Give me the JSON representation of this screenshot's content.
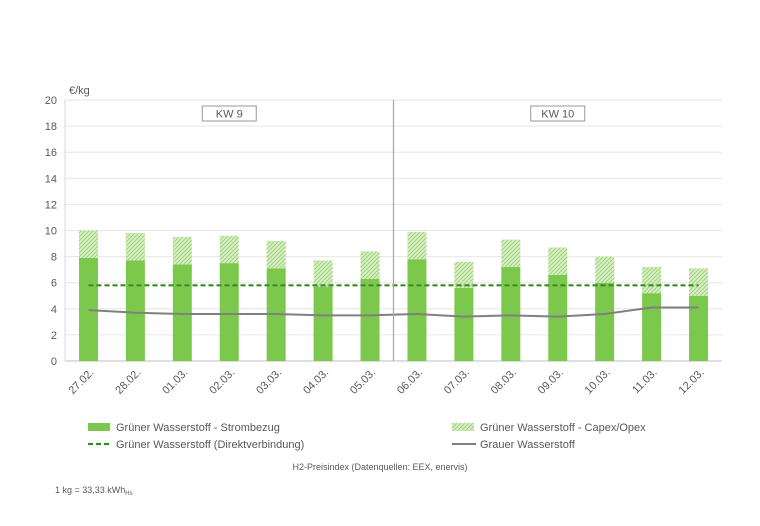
{
  "chart_data": {
    "type": "bar",
    "stacked": true,
    "ylabel": "€/kg",
    "ylim": [
      0,
      20
    ],
    "yticks": [
      0,
      2,
      4,
      6,
      8,
      10,
      12,
      14,
      16,
      18,
      20
    ],
    "grid": true,
    "categories": [
      "27.02.",
      "28.02.",
      "01.03.",
      "02.03.",
      "03.03.",
      "04.03.",
      "05.03.",
      "06.03.",
      "07.03.",
      "08.03.",
      "09.03.",
      "10.03.",
      "11.03.",
      "12.03."
    ],
    "groups": [
      {
        "label": "KW 9",
        "from": "27.02.",
        "to": "05.03."
      },
      {
        "label": "KW 10",
        "from": "06.03.",
        "to": "12.03."
      }
    ],
    "series": [
      {
        "name": "Grüner Wasserstoff - Strombezug",
        "kind": "bar",
        "color": "#7cc84d",
        "values": [
          7.9,
          7.7,
          7.4,
          7.5,
          7.1,
          5.7,
          6.3,
          7.8,
          5.6,
          7.2,
          6.6,
          6.0,
          5.2,
          5.0
        ]
      },
      {
        "name": "Grüner Wasserstoff - Capex/Opex",
        "kind": "bar",
        "color": "#c2e3a8",
        "pattern": "hatched",
        "values": [
          2.1,
          2.1,
          2.1,
          2.1,
          2.1,
          2.0,
          2.1,
          2.1,
          2.0,
          2.1,
          2.1,
          2.0,
          2.0,
          2.1
        ]
      },
      {
        "name": "Grüner Wasserstoff (Direktverbindung)",
        "kind": "line",
        "style": "dashed",
        "color": "#3a8a24",
        "values": [
          5.8,
          5.8,
          5.8,
          5.8,
          5.8,
          5.8,
          5.8,
          5.8,
          5.8,
          5.8,
          5.8,
          5.8,
          5.8,
          5.8
        ]
      },
      {
        "name": "Grauer Wasserstoff",
        "kind": "line",
        "style": "solid",
        "color": "#808080",
        "values": [
          3.9,
          3.7,
          3.6,
          3.6,
          3.6,
          3.5,
          3.5,
          3.6,
          3.4,
          3.5,
          3.4,
          3.6,
          4.1,
          4.1
        ]
      }
    ],
    "legend_position": "bottom",
    "source": "H2-Preisindex (Datenquellen: EEX, enervis)",
    "footnote": "1 kg = 33,33 kWh",
    "footnote_subscript": "Hs"
  }
}
